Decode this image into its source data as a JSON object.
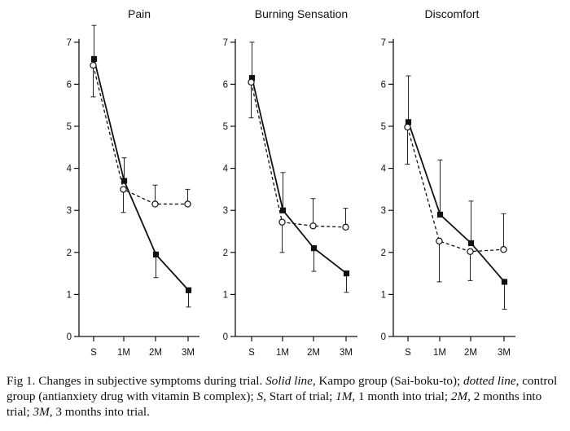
{
  "chart_data": [
    {
      "type": "line",
      "title": "Pain",
      "categories": [
        "S",
        "1M",
        "2M",
        "3M"
      ],
      "ylim": [
        0,
        7
      ],
      "yticks": [
        "0",
        "1",
        "2",
        "3",
        "4",
        "5",
        "6",
        "7"
      ],
      "series": [
        {
          "name": "Kampo group (Sai-boku-to)",
          "style": "solid",
          "marker": "filled-square",
          "values": [
            6.6,
            3.7,
            1.95,
            1.1
          ],
          "err_upper": [
            7.4,
            4.25,
            0,
            0
          ],
          "err_lower": [
            0,
            0,
            1.4,
            0.7
          ]
        },
        {
          "name": "control group (antianxiety drug with vitamin B complex)",
          "style": "dotted",
          "marker": "open-circle",
          "values": [
            6.45,
            3.5,
            3.15,
            3.15
          ],
          "err_upper": [
            0,
            0,
            3.6,
            3.5
          ],
          "err_lower": [
            5.7,
            2.95,
            0,
            0
          ]
        }
      ]
    },
    {
      "type": "line",
      "title": "Burning Sensation",
      "categories": [
        "S",
        "1M",
        "2M",
        "3M"
      ],
      "ylim": [
        0,
        7
      ],
      "yticks": [
        "0",
        "1",
        "2",
        "3",
        "4",
        "5",
        "6",
        "7"
      ],
      "series": [
        {
          "name": "Kampo group (Sai-boku-to)",
          "style": "solid",
          "marker": "filled-square",
          "values": [
            6.15,
            3.0,
            2.1,
            1.5
          ],
          "err_upper": [
            7.0,
            3.9,
            0,
            0
          ],
          "err_lower": [
            0,
            0,
            1.55,
            1.05
          ]
        },
        {
          "name": "control group (antianxiety drug with vitamin B complex)",
          "style": "dotted",
          "marker": "open-circle",
          "values": [
            6.05,
            2.72,
            2.63,
            2.6
          ],
          "err_upper": [
            0,
            0,
            3.28,
            3.05
          ],
          "err_lower": [
            5.2,
            2.0,
            0,
            0
          ]
        }
      ]
    },
    {
      "type": "line",
      "title": "Discomfort",
      "categories": [
        "S",
        "1M",
        "2M",
        "3M"
      ],
      "ylim": [
        0,
        7
      ],
      "yticks": [
        "0",
        "1",
        "2",
        "3",
        "4",
        "5",
        "6",
        "7"
      ],
      "series": [
        {
          "name": "Kampo group (Sai-boku-to)",
          "style": "solid",
          "marker": "filled-square",
          "values": [
            5.1,
            2.9,
            2.22,
            1.3
          ],
          "err_upper": [
            6.2,
            4.2,
            3.22,
            0
          ],
          "err_lower": [
            0,
            0,
            0,
            0.65
          ]
        },
        {
          "name": "control group (antianxiety drug with vitamin B complex)",
          "style": "dotted",
          "marker": "open-circle",
          "values": [
            4.98,
            2.27,
            2.02,
            2.07
          ],
          "err_upper": [
            0,
            0,
            0,
            2.92
          ],
          "err_lower": [
            4.1,
            1.3,
            1.33,
            0
          ]
        }
      ]
    }
  ],
  "caption": {
    "prefix": "Fig 1. Changes in subjective symptoms during trial. ",
    "solid_term": "Solid line,",
    "solid_desc": " Kampo group (Sai-boku-to); ",
    "dotted_term": "dotted line,",
    "dotted_desc": " control group (antianxiety drug with vitamin B complex); ",
    "s_term": "S,",
    "s_desc": " Start of trial; ",
    "m1_term": "1M,",
    "m1_desc": " 1 month into trial; ",
    "m2_term": "2M,",
    "m2_desc": " 2 months into trial; ",
    "m3_term": "3M,",
    "m3_desc": " 3 months into trial."
  }
}
